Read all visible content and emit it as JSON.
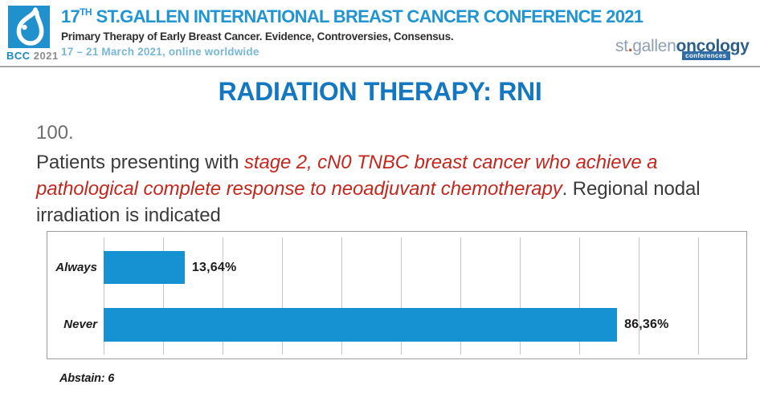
{
  "header": {
    "logo": {
      "bcc": "BCC",
      "year": "2021"
    },
    "title_num": "17",
    "title_sup": "TH",
    "title_rest": " ST.GALLEN INTERNATIONAL BREAST CANCER CONFERENCE 2021",
    "subtitle": "Primary Therapy of Early Breast Cancer. Evidence, Controversies, Consensus.",
    "dates": "17 – 21 March 2021, online worldwide",
    "right_logo": {
      "part_st": "st",
      "dot": ".",
      "part_gallen": "gallen",
      "part_oncology": "oncology",
      "badge": "conferences"
    }
  },
  "slide": {
    "title": "RADIATION THERAPY: RNI",
    "question_number": "100.",
    "question_plain_start": "Patients presenting with ",
    "question_red": "stage 2, cN0 TNBC breast cancer who achieve a pathological complete response to neoadjuvant chemotherapy",
    "question_plain_end": ". Regional nodal irradiation is indicated",
    "abstain": "Abstain: 6"
  },
  "chart_data": {
    "type": "bar",
    "orientation": "horizontal",
    "categories": [
      "Always",
      "Never"
    ],
    "values": [
      13.64,
      86.36
    ],
    "value_labels": [
      "13,64%",
      "86,36%"
    ],
    "xlim": [
      0,
      100
    ],
    "gridline_interval_percent": 10,
    "grid": true,
    "bar_color": "#1692d3",
    "title": "",
    "xlabel": "",
    "ylabel": ""
  },
  "colors": {
    "header_blue": "#2095d2",
    "date_light_blue": "#79b7d7",
    "slide_title_blue": "#1377c2",
    "question_red": "#c3271e",
    "body_text": "#3b3b3b",
    "bar_blue": "#1692d3",
    "logo_background": "#2191cd"
  }
}
